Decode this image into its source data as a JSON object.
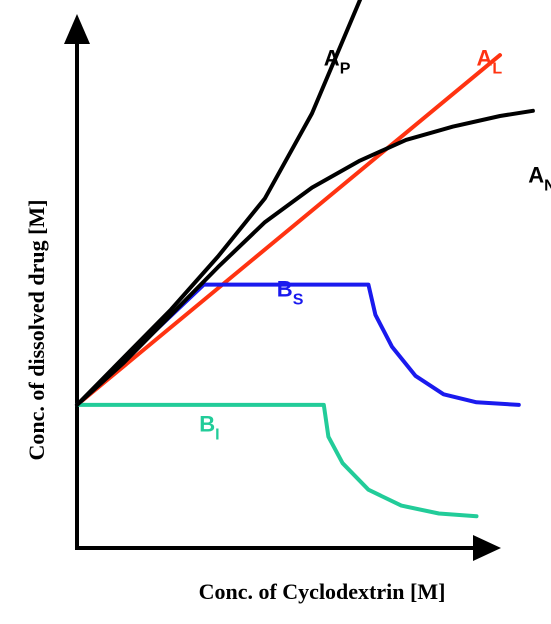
{
  "chart_data": {
    "type": "line",
    "xlabel": "Conc. of Cyclodextrin [M]",
    "ylabel": "Conc. of dissolved drug [M]",
    "grid": false,
    "legend": "none",
    "xlim": [
      0,
      10
    ],
    "ylim": [
      0,
      10
    ],
    "series": [
      {
        "name": "A",
        "subscript": "P",
        "color": "#000000",
        "label_at": [
          5.25,
          9.1
        ],
        "points": [
          [
            0,
            2.7
          ],
          [
            1.0,
            3.6
          ],
          [
            2.0,
            4.5
          ],
          [
            3.0,
            5.5
          ],
          [
            4.0,
            6.6
          ],
          [
            5.0,
            8.2
          ],
          [
            6.05,
            10.4
          ]
        ]
      },
      {
        "name": "A",
        "subscript": "L",
        "color": "#ff3311",
        "label_at": [
          8.5,
          9.1
        ],
        "points": [
          [
            0,
            2.7
          ],
          [
            9.0,
            9.3
          ]
        ]
      },
      {
        "name": "A",
        "subscript": "N",
        "color": "#000000",
        "label_at": [
          9.6,
          6.9
        ],
        "points": [
          [
            0,
            2.7
          ],
          [
            1.0,
            3.5
          ],
          [
            2.0,
            4.4
          ],
          [
            3.0,
            5.3
          ],
          [
            4.0,
            6.15
          ],
          [
            5.0,
            6.8
          ],
          [
            6.0,
            7.3
          ],
          [
            7.0,
            7.7
          ],
          [
            8.0,
            7.95
          ],
          [
            9.0,
            8.15
          ],
          [
            9.7,
            8.25
          ]
        ]
      },
      {
        "name": "B",
        "subscript": "S",
        "color": "#1a1aee",
        "label_at": [
          4.25,
          4.75
        ],
        "points": [
          [
            0,
            2.7
          ],
          [
            2.7,
            4.97
          ],
          [
            6.2,
            4.97
          ],
          [
            6.35,
            4.4
          ],
          [
            6.7,
            3.8
          ],
          [
            7.2,
            3.25
          ],
          [
            7.8,
            2.9
          ],
          [
            8.5,
            2.75
          ],
          [
            9.4,
            2.7
          ]
        ]
      },
      {
        "name": "B",
        "subscript": "I",
        "color": "#22cc99",
        "label_at": [
          2.6,
          2.2
        ],
        "points": [
          [
            0,
            2.7
          ],
          [
            5.25,
            2.7
          ],
          [
            5.35,
            2.1
          ],
          [
            5.65,
            1.6
          ],
          [
            6.2,
            1.1
          ],
          [
            6.9,
            0.8
          ],
          [
            7.7,
            0.65
          ],
          [
            8.5,
            0.6
          ]
        ]
      }
    ]
  }
}
